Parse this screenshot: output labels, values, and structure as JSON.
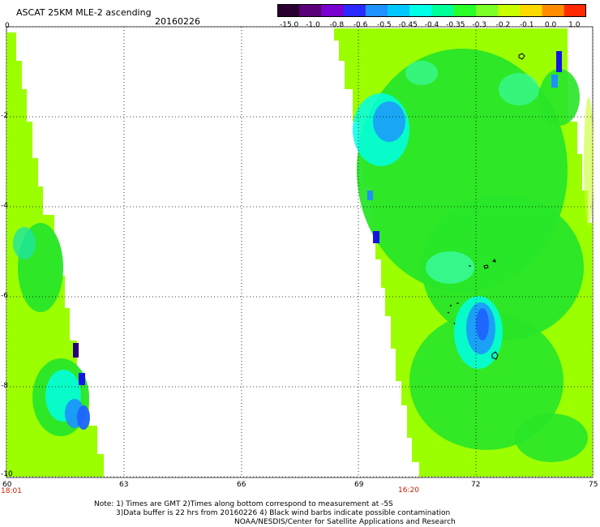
{
  "header": {
    "title": "ASCAT 25KM MLE-2 ascending",
    "date": "20160226"
  },
  "colorbar": {
    "labels": [
      "-15.0",
      "-1.0",
      "-0.8",
      "-0.6",
      "-0.5",
      "-0.45",
      "-0.4",
      "-0.35",
      "-0.3",
      "-0.2",
      "-0.1",
      "0.0",
      "1.0"
    ],
    "colors": [
      "#2a0030",
      "#5a007a",
      "#7a00d0",
      "#2a2aff",
      "#1e90ff",
      "#00c8ff",
      "#00ffe6",
      "#00ff96",
      "#28ff28",
      "#7cff28",
      "#c8ff00",
      "#ffd800",
      "#ff8c00",
      "#ff2a00"
    ]
  },
  "axes": {
    "y_ticks": [
      "0",
      "-2",
      "-4",
      "-6",
      "-8",
      "-10"
    ],
    "x_ticks": [
      "60",
      "63",
      "66",
      "69",
      "72",
      "75"
    ],
    "time_labels": [
      "18:01",
      "16:20"
    ]
  },
  "notes": {
    "line1": "Note: 1) Times are GMT 2)Times along bottom correspond to measurement at -5S",
    "line2": "3)Data buffer is 22 hrs from 20160226 4) Black wind barbs indicate possible contamination",
    "line3": "NOAA/NESDIS/Center for Satellite Applications and Research"
  },
  "map_colors": {
    "lime": "#9cff00",
    "green": "#28e628",
    "cyan": "#00ffe6",
    "blue": "#1e64ff",
    "darkblue": "#1414e6"
  }
}
